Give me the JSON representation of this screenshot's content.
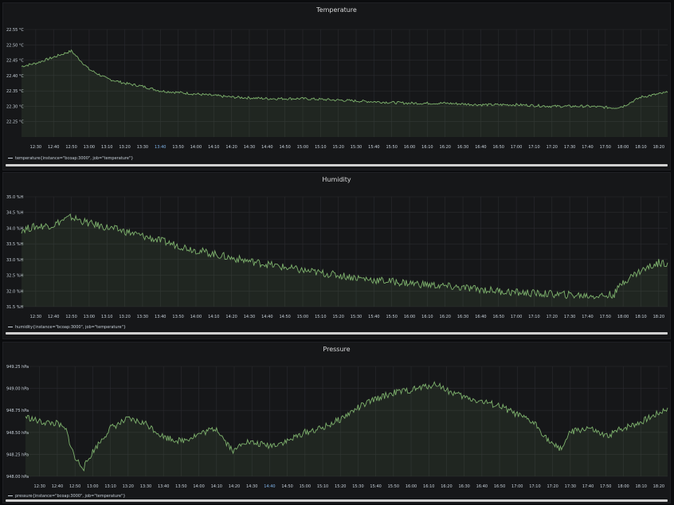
{
  "panels": [
    {
      "title": "Temperature",
      "legend": "temperature{instance=\"bcoap:3000\", job=\"temperature\"}",
      "chart_data": {
        "type": "area",
        "title": "Temperature",
        "y_ticks": [
          "22.25 °C",
          "22.30 °C",
          "22.35 °C",
          "22.40 °C",
          "22.45 °C",
          "22.50 °C",
          "22.55 °C"
        ],
        "ylim": [
          22.2,
          22.55
        ],
        "x_ticks": [
          "12:30",
          "12:40",
          "12:50",
          "13:00",
          "13:10",
          "13:20",
          "13:30",
          "13:40",
          "13:50",
          "14:00",
          "14:10",
          "14:20",
          "14:30",
          "14:40",
          "14:50",
          "15:00",
          "15:10",
          "15:20",
          "15:30",
          "15:40",
          "15:50",
          "16:00",
          "16:10",
          "16:20",
          "16:30",
          "16:40",
          "16:50",
          "17:00",
          "17:10",
          "17:20",
          "17:30",
          "17:40",
          "17:50",
          "18:00",
          "18:10",
          "18:20"
        ],
        "highlight_ticks": [
          "13:40"
        ],
        "xlim": [
          "12:22",
          "18:25"
        ],
        "series": [
          {
            "x": [
              "12:22",
              "12:30",
              "12:40",
              "12:45",
              "12:50",
              "12:55",
              "13:00",
              "13:10",
              "13:20",
              "13:30",
              "13:40",
              "13:50",
              "14:00",
              "14:20",
              "14:40",
              "15:00",
              "15:20",
              "15:40",
              "16:00",
              "16:20",
              "16:40",
              "17:00",
              "17:20",
              "17:40",
              "17:55",
              "18:00",
              "18:05",
              "18:10",
              "18:20",
              "18:25"
            ],
            "values": [
              22.43,
              22.44,
              22.46,
              22.47,
              22.48,
              22.45,
              22.42,
              22.39,
              22.375,
              22.365,
              22.35,
              22.345,
              22.34,
              22.33,
              22.325,
              22.325,
              22.32,
              22.315,
              22.31,
              22.31,
              22.305,
              22.305,
              22.3,
              22.3,
              22.295,
              22.3,
              22.315,
              22.33,
              22.34,
              22.345
            ],
            "color": "#7eb26d"
          }
        ]
      }
    },
    {
      "title": "Humidity",
      "legend": "humidity{instance=\"bcoap:3000\", job=\"temperature\"}",
      "chart_data": {
        "type": "area",
        "title": "Humidity",
        "y_ticks": [
          "31.5 %H",
          "32.0 %H",
          "32.5 %H",
          "33.0 %H",
          "33.5 %H",
          "34.0 %H",
          "34.5 %H",
          "35.0 %H"
        ],
        "ylim": [
          31.5,
          35.0
        ],
        "x_ticks": [
          "12:30",
          "12:40",
          "12:50",
          "13:00",
          "13:10",
          "13:20",
          "13:30",
          "13:40",
          "13:50",
          "14:00",
          "14:10",
          "14:20",
          "14:30",
          "14:40",
          "14:50",
          "15:00",
          "15:10",
          "15:20",
          "15:30",
          "15:40",
          "15:50",
          "16:00",
          "16:10",
          "16:20",
          "16:30",
          "16:40",
          "16:50",
          "17:00",
          "17:10",
          "17:20",
          "17:30",
          "17:40",
          "17:50",
          "18:00",
          "18:10",
          "18:20"
        ],
        "highlight_ticks": [],
        "xlim": [
          "12:22",
          "18:25"
        ],
        "series": [
          {
            "x": [
              "12:22",
              "12:30",
              "12:40",
              "12:45",
              "12:50",
              "13:00",
              "13:20",
              "13:40",
              "14:00",
              "14:20",
              "14:40",
              "15:00",
              "15:20",
              "15:40",
              "16:00",
              "16:20",
              "16:40",
              "17:00",
              "17:20",
              "17:40",
              "17:50",
              "17:55",
              "18:00",
              "18:10",
              "18:20",
              "18:25"
            ],
            "values": [
              33.95,
              34.05,
              34.1,
              34.25,
              34.35,
              34.15,
              33.9,
              33.6,
              33.3,
              33.05,
              32.85,
              32.65,
              32.5,
              32.35,
              32.25,
              32.15,
              32.05,
              31.95,
              31.9,
              31.85,
              31.85,
              31.9,
              32.3,
              32.65,
              32.9,
              32.9
            ],
            "color": "#7eb26d"
          }
        ]
      }
    },
    {
      "title": "Pressure",
      "legend": "pressure{instance=\"bcoap:3000\", job=\"temperature\"}",
      "chart_data": {
        "type": "area",
        "title": "Pressure",
        "y_ticks": [
          "948.00 hPa",
          "948.25 hPa",
          "948.50 hPa",
          "948.75 hPa",
          "949.00 hPa",
          "949.25 hPa"
        ],
        "ylim": [
          948.0,
          949.25
        ],
        "x_ticks": [
          "12:30",
          "12:40",
          "12:50",
          "13:00",
          "13:10",
          "13:20",
          "13:30",
          "13:40",
          "13:50",
          "14:00",
          "14:10",
          "14:20",
          "14:30",
          "14:40",
          "14:50",
          "15:00",
          "15:10",
          "15:20",
          "15:30",
          "15:40",
          "15:50",
          "16:00",
          "16:10",
          "16:20",
          "16:30",
          "16:40",
          "16:50",
          "17:00",
          "17:10",
          "17:20",
          "17:30",
          "17:40",
          "17:50",
          "18:00",
          "18:10",
          "18:20"
        ],
        "highlight_ticks": [
          "14:40"
        ],
        "xlim": [
          "12:22",
          "18:25"
        ],
        "series": [
          {
            "x": [
              "12:22",
              "12:30",
              "12:40",
              "12:45",
              "12:50",
              "12:55",
              "13:00",
              "13:10",
              "13:20",
              "13:30",
              "13:40",
              "13:50",
              "14:00",
              "14:10",
              "14:15",
              "14:20",
              "14:25",
              "14:30",
              "14:40",
              "14:50",
              "15:00",
              "15:10",
              "15:20",
              "15:30",
              "15:40",
              "15:50",
              "16:00",
              "16:10",
              "16:15",
              "16:20",
              "16:30",
              "16:40",
              "16:50",
              "17:00",
              "17:10",
              "17:20",
              "17:25",
              "17:30",
              "17:40",
              "17:50",
              "18:00",
              "18:10",
              "18:20",
              "18:25"
            ],
            "values": [
              948.68,
              948.62,
              948.6,
              948.52,
              948.2,
              948.1,
              948.28,
              948.55,
              948.65,
              948.6,
              948.45,
              948.4,
              948.48,
              948.55,
              948.4,
              948.28,
              948.4,
              948.38,
              948.35,
              948.4,
              948.5,
              948.55,
              948.65,
              948.78,
              948.88,
              948.95,
              948.98,
              949.03,
              949.05,
              948.98,
              948.9,
              948.85,
              948.8,
              948.7,
              948.6,
              948.35,
              948.32,
              948.5,
              948.55,
              948.45,
              948.55,
              948.62,
              948.72,
              948.78
            ],
            "color": "#7eb26d"
          }
        ]
      }
    }
  ]
}
